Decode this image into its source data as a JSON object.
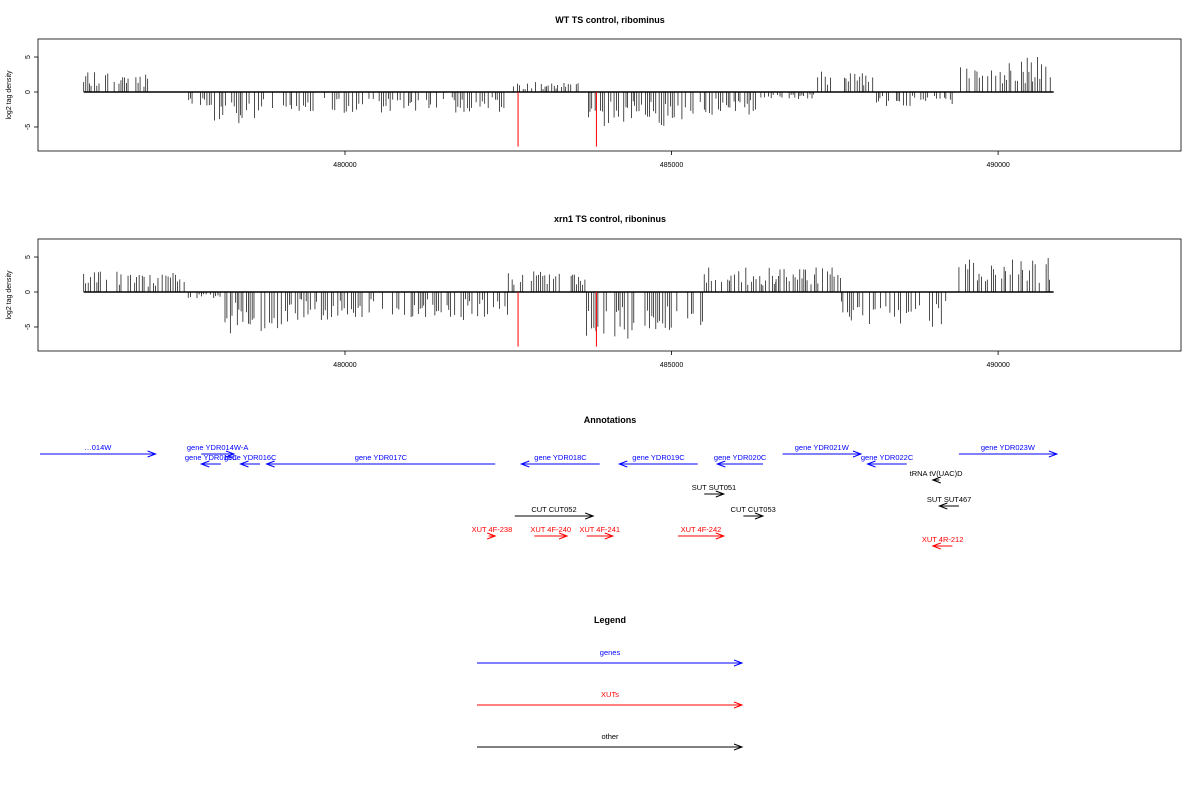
{
  "colors": {
    "genes": "#0000ff",
    "xuts": "#ff0000",
    "other": "#000000",
    "bars": "#000000",
    "highlight": "#ff0000"
  },
  "chart_data": [
    {
      "type": "bar",
      "title": "WT TS control, ribominus",
      "ylabel": "log2 tag density",
      "xlim": [
        475300,
        492800
      ],
      "ylim": [
        -8,
        8
      ],
      "xticks": [
        480000,
        485000,
        490000
      ],
      "yticks": [
        -5,
        0,
        5
      ],
      "data_range": [
        476000,
        490850
      ],
      "regions": [
        {
          "from": 476000,
          "to": 477000,
          "level": 3.0,
          "sign": 1
        },
        {
          "from": 477500,
          "to": 478000,
          "level": 2.0,
          "sign": -1
        },
        {
          "from": 478000,
          "to": 478700,
          "level": 4.5,
          "sign": -1
        },
        {
          "from": 478700,
          "to": 482500,
          "level": 3.0,
          "sign": -1
        },
        {
          "from": 482500,
          "to": 483600,
          "level": 1.5,
          "sign": 1
        },
        {
          "from": 483700,
          "to": 485400,
          "level": 5.0,
          "sign": -1
        },
        {
          "from": 485400,
          "to": 486300,
          "level": 3.5,
          "sign": -1
        },
        {
          "from": 486300,
          "to": 487200,
          "level": 1.0,
          "sign": -1
        },
        {
          "from": 487200,
          "to": 488100,
          "level": 3.0,
          "sign": 1
        },
        {
          "from": 488100,
          "to": 489300,
          "level": 2.0,
          "sign": -1
        },
        {
          "from": 489400,
          "to": 490800,
          "level": 5.0,
          "sign": 1
        }
      ],
      "highlights": [
        {
          "x": 482650,
          "value": -7.8
        },
        {
          "x": 483850,
          "value": -7.8
        }
      ]
    },
    {
      "type": "bar",
      "title": "xrn1 TS control, riboninus",
      "ylabel": "log2 tag density",
      "xlim": [
        475300,
        492800
      ],
      "ylim": [
        -8,
        8
      ],
      "xticks": [
        480000,
        485000,
        490000
      ],
      "yticks": [
        -5,
        0,
        5
      ],
      "data_range": [
        476000,
        490850
      ],
      "regions": [
        {
          "from": 476000,
          "to": 477600,
          "level": 3.0,
          "sign": 1
        },
        {
          "from": 477600,
          "to": 478100,
          "level": 1.0,
          "sign": -1
        },
        {
          "from": 478100,
          "to": 479200,
          "level": 6.0,
          "sign": -1
        },
        {
          "from": 479200,
          "to": 482500,
          "level": 4.0,
          "sign": -1
        },
        {
          "from": 482500,
          "to": 483700,
          "level": 3.0,
          "sign": 1
        },
        {
          "from": 483700,
          "to": 485500,
          "level": 7.0,
          "sign": -1
        },
        {
          "from": 485500,
          "to": 486600,
          "level": 3.5,
          "sign": 1
        },
        {
          "from": 486600,
          "to": 487600,
          "level": 3.5,
          "sign": 1
        },
        {
          "from": 487600,
          "to": 489200,
          "level": 5.0,
          "sign": -1
        },
        {
          "from": 489400,
          "to": 490800,
          "level": 5.0,
          "sign": 1
        }
      ],
      "highlights": [
        {
          "x": 482650,
          "value": -7.8
        },
        {
          "x": 483850,
          "value": -7.8
        }
      ]
    }
  ],
  "annotations": {
    "title": "Annotations",
    "features": [
      {
        "label": "…014W",
        "category": "genes",
        "from": 475300,
        "to": 477100,
        "strand": "+",
        "row": 0
      },
      {
        "label": "gene YDR014W-A",
        "category": "genes",
        "from": 477800,
        "to": 478300,
        "strand": "+",
        "row": 0
      },
      {
        "label": "gene YDR015C",
        "category": "genes",
        "from": 477800,
        "to": 478100,
        "strand": "-",
        "row": 1
      },
      {
        "label": "gene YDR016C",
        "category": "genes",
        "from": 478400,
        "to": 478700,
        "strand": "-",
        "row": 1
      },
      {
        "label": "gene YDR017C",
        "category": "genes",
        "from": 478800,
        "to": 482300,
        "strand": "-",
        "row": 1
      },
      {
        "label": "gene YDR018C",
        "category": "genes",
        "from": 482700,
        "to": 483900,
        "strand": "-",
        "row": 1
      },
      {
        "label": "gene YDR019C",
        "category": "genes",
        "from": 484200,
        "to": 485400,
        "strand": "-",
        "row": 1
      },
      {
        "label": "gene YDR020C",
        "category": "genes",
        "from": 485700,
        "to": 486400,
        "strand": "-",
        "row": 1
      },
      {
        "label": "gene YDR021W",
        "category": "genes",
        "from": 486700,
        "to": 487900,
        "strand": "+",
        "row": 0
      },
      {
        "label": "gene YDR022C",
        "category": "genes",
        "from": 488000,
        "to": 488600,
        "strand": "-",
        "row": 1
      },
      {
        "label": "gene YDR023W",
        "category": "genes",
        "from": 489400,
        "to": 490900,
        "strand": "+",
        "row": 0
      },
      {
        "label": "tRNA tV(UAC)D",
        "category": "other",
        "from": 489000,
        "to": 489100,
        "strand": "-",
        "row": 2
      },
      {
        "label": "SUT SUT051",
        "category": "other",
        "from": 485500,
        "to": 485800,
        "strand": "+",
        "row": 3
      },
      {
        "label": "SUT SUT467",
        "category": "other",
        "from": 489100,
        "to": 489400,
        "strand": "-",
        "row": 4
      },
      {
        "label": "CUT CUT052",
        "category": "other",
        "from": 482600,
        "to": 483800,
        "strand": "+",
        "row": 5
      },
      {
        "label": "CUT CUT053",
        "category": "other",
        "from": 486100,
        "to": 486400,
        "strand": "+",
        "row": 5
      },
      {
        "label": "XUT 4F-238",
        "category": "xuts",
        "from": 482200,
        "to": 482300,
        "strand": "+",
        "row": 6
      },
      {
        "label": "XUT 4F-240",
        "category": "xuts",
        "from": 482900,
        "to": 483400,
        "strand": "+",
        "row": 6
      },
      {
        "label": "XUT 4F-241",
        "category": "xuts",
        "from": 483700,
        "to": 484100,
        "strand": "+",
        "row": 6
      },
      {
        "label": "XUT 4F-242",
        "category": "xuts",
        "from": 485100,
        "to": 485800,
        "strand": "+",
        "row": 6
      },
      {
        "label": "XUT 4R-212",
        "category": "xuts",
        "from": 489000,
        "to": 489300,
        "strand": "-",
        "row": 7
      }
    ]
  },
  "legend": {
    "title": "Legend",
    "entries": [
      {
        "label": "genes",
        "category": "genes"
      },
      {
        "label": "XUTs",
        "category": "xuts"
      },
      {
        "label": "other",
        "category": "other"
      }
    ]
  }
}
